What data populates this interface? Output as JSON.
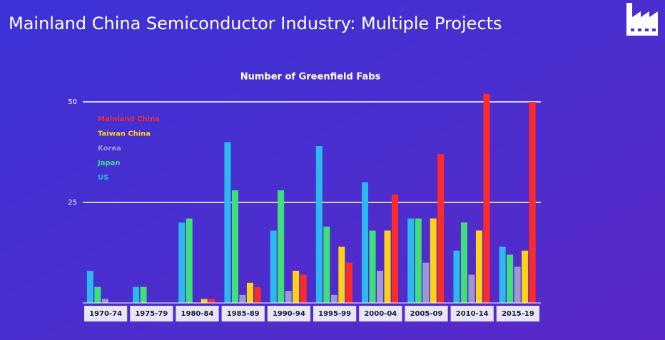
{
  "chart_data": {
    "type": "bar",
    "slide_title": "Mainland China Semiconductor Industry: Multiple Projects",
    "title": "Number of Greenfield Fabs",
    "categories": [
      "1970-74",
      "1975-79",
      "1980-84",
      "1985-89",
      "1990-94",
      "1995-99",
      "2000-04",
      "2005-09",
      "2010-14",
      "2015-19"
    ],
    "series": [
      {
        "name": "Mainland China",
        "color": "#ff2b2b",
        "values": [
          0,
          0,
          1,
          4,
          7,
          10,
          27,
          37,
          52,
          50
        ]
      },
      {
        "name": "Taiwan China",
        "color": "#ffd21a",
        "values": [
          0,
          0,
          1,
          5,
          8,
          14,
          18,
          21,
          18,
          13
        ]
      },
      {
        "name": "Korea",
        "color": "#9c98d8",
        "values": [
          1,
          0,
          0,
          2,
          3,
          2,
          8,
          10,
          7,
          9
        ]
      },
      {
        "name": "Japan",
        "color": "#3fe07a",
        "values": [
          4,
          4,
          21,
          28,
          28,
          19,
          18,
          21,
          20,
          12
        ]
      },
      {
        "name": "US",
        "color": "#2cb9f0",
        "values": [
          8,
          4,
          20,
          40,
          18,
          39,
          30,
          21,
          13,
          14
        ]
      }
    ],
    "ylim": [
      0,
      53
    ],
    "yticks": [
      25,
      50
    ],
    "grid": true,
    "legend": "upper left"
  }
}
